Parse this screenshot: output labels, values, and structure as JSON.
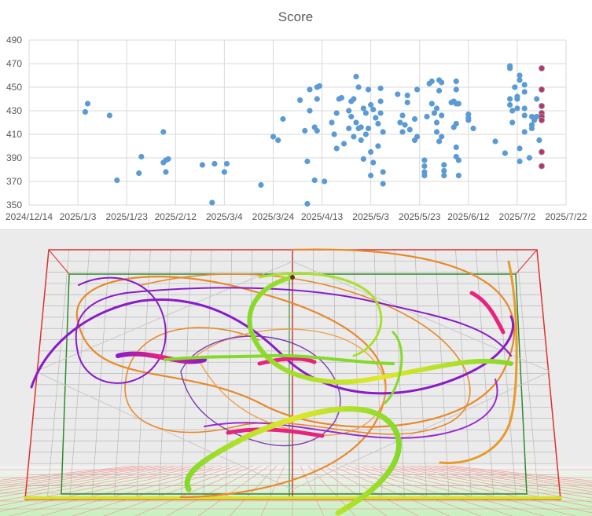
{
  "chart_data": {
    "type": "scatter",
    "title": "Score",
    "xlabel": "",
    "ylabel": "",
    "x_ticks": [
      "2024/12/14",
      "2025/1/3",
      "2025/1/23",
      "2025/2/12",
      "2025/3/4",
      "2025/3/24",
      "2025/4/13",
      "2025/5/3",
      "2025/5/23",
      "2025/6/12",
      "2025/7/2",
      "2025/7/22"
    ],
    "y_ticks": [
      350,
      370,
      390,
      410,
      430,
      450,
      470,
      490
    ],
    "xlim": [
      "2024-12-14",
      "2025-07-22"
    ],
    "ylim": [
      350,
      490
    ],
    "grid": true,
    "series": [
      {
        "color": "#5b9bd5",
        "points": [
          [
            "2025-01-06",
            429
          ],
          [
            "2025-01-07",
            436
          ],
          [
            "2025-01-16",
            426
          ],
          [
            "2025-01-19",
            371
          ],
          [
            "2025-01-28",
            377
          ],
          [
            "2025-01-29",
            391
          ],
          [
            "2025-02-07",
            386
          ],
          [
            "2025-02-07",
            412
          ],
          [
            "2025-02-08",
            388
          ],
          [
            "2025-02-08",
            378
          ],
          [
            "2025-02-09",
            389
          ],
          [
            "2025-02-23",
            384
          ],
          [
            "2025-02-27",
            352
          ],
          [
            "2025-02-28",
            385
          ],
          [
            "2025-03-04",
            378
          ],
          [
            "2025-03-05",
            385
          ],
          [
            "2025-03-19",
            367
          ],
          [
            "2025-03-24",
            408
          ],
          [
            "2025-03-26",
            405
          ],
          [
            "2025-03-28",
            423
          ],
          [
            "2025-04-04",
            439
          ],
          [
            "2025-04-06",
            413
          ],
          [
            "2025-04-07",
            387
          ],
          [
            "2025-04-07",
            351
          ],
          [
            "2025-04-08",
            448
          ],
          [
            "2025-04-08",
            430
          ],
          [
            "2025-04-10",
            416
          ],
          [
            "2025-04-10",
            371
          ],
          [
            "2025-04-11",
            450
          ],
          [
            "2025-04-11",
            440
          ],
          [
            "2025-04-11",
            413
          ],
          [
            "2025-04-12",
            451
          ],
          [
            "2025-04-14",
            370
          ],
          [
            "2025-04-17",
            420
          ],
          [
            "2025-04-18",
            410
          ],
          [
            "2025-04-19",
            398
          ],
          [
            "2025-04-19",
            428
          ],
          [
            "2025-04-20",
            440
          ],
          [
            "2025-04-21",
            441
          ],
          [
            "2025-04-22",
            402
          ],
          [
            "2025-04-24",
            415
          ],
          [
            "2025-04-24",
            430
          ],
          [
            "2025-04-25",
            438
          ],
          [
            "2025-04-25",
            425
          ],
          [
            "2025-04-26",
            440
          ],
          [
            "2025-04-26",
            408
          ],
          [
            "2025-04-27",
            459
          ],
          [
            "2025-04-27",
            420
          ],
          [
            "2025-04-28",
            450
          ],
          [
            "2025-04-28",
            415
          ],
          [
            "2025-04-29",
            416
          ],
          [
            "2025-04-29",
            405
          ],
          [
            "2025-04-30",
            432
          ],
          [
            "2025-04-30",
            389
          ],
          [
            "2025-05-01",
            428
          ],
          [
            "2025-05-01",
            410
          ],
          [
            "2025-05-02",
            448
          ],
          [
            "2025-05-02",
            415
          ],
          [
            "2025-05-03",
            435
          ],
          [
            "2025-05-03",
            395
          ],
          [
            "2025-05-03",
            375
          ],
          [
            "2025-05-04",
            386
          ],
          [
            "2025-05-04",
            431
          ],
          [
            "2025-05-05",
            424
          ],
          [
            "2025-05-06",
            419
          ],
          [
            "2025-05-06",
            400
          ],
          [
            "2025-05-07",
            449
          ],
          [
            "2025-05-07",
            438
          ],
          [
            "2025-05-07",
            428
          ],
          [
            "2025-05-08",
            368
          ],
          [
            "2025-05-08",
            378
          ],
          [
            "2025-05-08",
            412
          ],
          [
            "2025-05-14",
            444
          ],
          [
            "2025-05-15",
            420
          ],
          [
            "2025-05-16",
            426
          ],
          [
            "2025-05-16",
            412
          ],
          [
            "2025-05-17",
            418
          ],
          [
            "2025-05-18",
            443
          ],
          [
            "2025-05-18",
            437
          ],
          [
            "2025-05-19",
            414
          ],
          [
            "2025-05-21",
            423
          ],
          [
            "2025-05-21",
            405
          ],
          [
            "2025-05-22",
            448
          ],
          [
            "2025-05-22",
            408
          ],
          [
            "2025-05-25",
            388
          ],
          [
            "2025-05-25",
            378
          ],
          [
            "2025-05-25",
            383
          ],
          [
            "2025-05-25",
            375
          ],
          [
            "2025-05-26",
            425
          ],
          [
            "2025-05-27",
            453
          ],
          [
            "2025-05-28",
            455
          ],
          [
            "2025-05-28",
            436
          ],
          [
            "2025-05-29",
            428
          ],
          [
            "2025-05-30",
            432
          ],
          [
            "2025-05-30",
            420
          ],
          [
            "2025-05-30",
            412
          ],
          [
            "2025-05-31",
            404
          ],
          [
            "2025-05-31",
            447
          ],
          [
            "2025-05-31",
            456
          ],
          [
            "2025-06-01",
            454
          ],
          [
            "2025-06-01",
            426
          ],
          [
            "2025-06-01",
            408
          ],
          [
            "2025-06-02",
            384
          ],
          [
            "2025-06-02",
            379
          ],
          [
            "2025-06-02",
            375
          ],
          [
            "2025-06-05",
            437
          ],
          [
            "2025-06-06",
            416
          ],
          [
            "2025-06-06",
            438
          ],
          [
            "2025-06-07",
            455
          ],
          [
            "2025-06-07",
            448
          ],
          [
            "2025-06-07",
            436
          ],
          [
            "2025-06-07",
            419
          ],
          [
            "2025-06-07",
            399
          ],
          [
            "2025-06-07",
            391
          ],
          [
            "2025-06-08",
            388
          ],
          [
            "2025-06-08",
            375
          ],
          [
            "2025-06-08",
            436
          ],
          [
            "2025-06-12",
            427
          ],
          [
            "2025-06-12",
            424
          ],
          [
            "2025-06-12",
            422
          ],
          [
            "2025-06-14",
            415
          ],
          [
            "2025-06-23",
            404
          ],
          [
            "2025-06-27",
            394
          ],
          [
            "2025-06-29",
            468
          ],
          [
            "2025-06-29",
            466
          ],
          [
            "2025-06-29",
            440
          ],
          [
            "2025-06-29",
            435
          ],
          [
            "2025-06-30",
            430
          ],
          [
            "2025-06-30",
            420
          ],
          [
            "2025-07-01",
            450
          ],
          [
            "2025-07-02",
            440
          ],
          [
            "2025-07-02",
            442
          ],
          [
            "2025-07-02",
            432
          ],
          [
            "2025-07-03",
            460
          ],
          [
            "2025-07-03",
            456
          ],
          [
            "2025-07-03",
            398
          ],
          [
            "2025-07-03",
            387
          ],
          [
            "2025-07-05",
            426
          ],
          [
            "2025-07-05",
            452
          ],
          [
            "2025-07-05",
            446
          ],
          [
            "2025-07-05",
            412
          ],
          [
            "2025-07-05",
            432
          ],
          [
            "2025-07-07",
            390
          ],
          [
            "2025-07-08",
            425
          ],
          [
            "2025-07-08",
            418
          ],
          [
            "2025-07-08",
            415
          ],
          [
            "2025-07-09",
            422
          ],
          [
            "2025-07-10",
            440
          ],
          [
            "2025-07-10",
            425
          ],
          [
            "2025-07-11",
            405
          ]
        ]
      },
      {
        "color": "#c0355a",
        "points": [
          [
            "2025-07-12",
            466
          ],
          [
            "2025-07-12",
            448
          ],
          [
            "2025-07-12",
            434
          ],
          [
            "2025-07-12",
            428
          ],
          [
            "2025-07-12",
            425
          ],
          [
            "2025-07-12",
            422
          ],
          [
            "2025-07-12",
            395
          ],
          [
            "2025-07-12",
            383
          ]
        ]
      }
    ]
  },
  "viz3d": {
    "colors": {
      "purple": "#8a1cc8",
      "magenta": "#e8237d",
      "orange": "#e8892b",
      "green": "#86d92a",
      "yellow": "#d9e82a",
      "red_frame": "#e03030",
      "green_frame": "#2f8a2f",
      "floor": "#c8f0c0"
    }
  }
}
